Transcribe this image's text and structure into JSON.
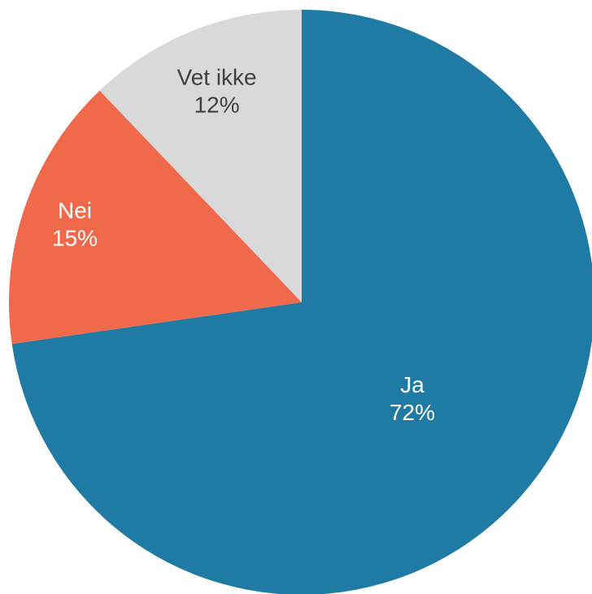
{
  "chart_data": {
    "type": "pie",
    "slices": [
      {
        "label": "Ja",
        "percent_label": "72%",
        "value": 72,
        "color": "#1f7ba3",
        "text_color": "#ffffff"
      },
      {
        "label": "Nei",
        "percent_label": "15%",
        "value": 15,
        "color": "#f0694a",
        "text_color": "#ffffff"
      },
      {
        "label": "Vet ikke",
        "percent_label": "12%",
        "value": 12,
        "color": "#d9d9d9",
        "text_color": "#404040"
      }
    ],
    "start_angle": "12 o'clock",
    "direction": "clockwise"
  }
}
